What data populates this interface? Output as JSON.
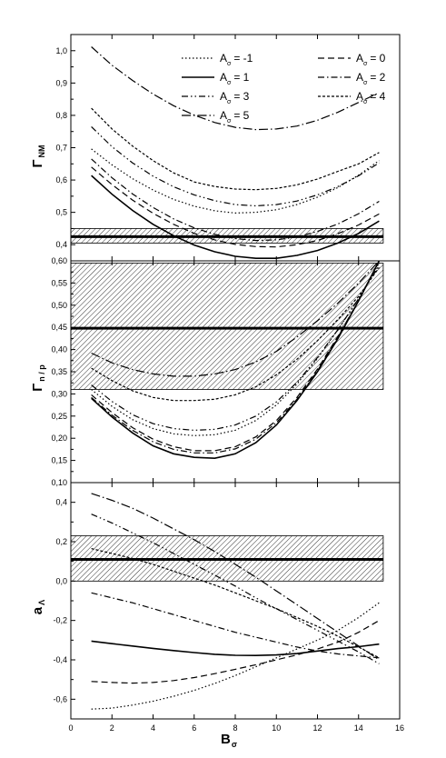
{
  "figure": {
    "xlabel": "B",
    "xlabel_sub": "σ"
  },
  "legend": {
    "placement": "top-right of top panel",
    "entries": [
      {
        "symbol": "A",
        "sub": "σ",
        "value": "= -1",
        "style": "dot"
      },
      {
        "symbol": "A",
        "sub": "σ",
        "value": "= 0",
        "style": "dash"
      },
      {
        "symbol": "A",
        "sub": "σ",
        "value": "= 1",
        "style": "solid"
      },
      {
        "symbol": "A",
        "sub": "σ",
        "value": "= 2",
        "style": "dashdot"
      },
      {
        "symbol": "A",
        "sub": "σ",
        "value": "= 3",
        "style": "dashdotdot"
      },
      {
        "symbol": "A",
        "sub": "σ",
        "value": "= 4",
        "style": "shortdash"
      },
      {
        "symbol": "A",
        "sub": "σ",
        "value": "= 5",
        "style": "longdashdot"
      }
    ]
  },
  "chart_data": [
    {
      "type": "line",
      "ylabel": "Γ",
      "ylabel_sub": "NM",
      "xlim": [
        0,
        16
      ],
      "ylim": [
        0.35,
        1.05
      ],
      "yticks": [
        "0,4",
        "0,5",
        "0,6",
        "0,7",
        "0,8",
        "0,9",
        "1,0"
      ],
      "ytick_values": [
        0.4,
        0.5,
        0.6,
        0.7,
        0.8,
        0.9,
        1.0
      ],
      "xticks": [
        0,
        2,
        4,
        6,
        8,
        10,
        12,
        14,
        16
      ],
      "band": {
        "y0": 0.405,
        "y1": 0.45,
        "line": 0.425,
        "x0": 0,
        "x1": 15.2
      },
      "x": [
        1,
        2,
        3,
        4,
        5,
        6,
        7,
        8,
        9,
        10,
        11,
        12,
        13,
        14,
        15
      ],
      "series": [
        {
          "style": "dot",
          "values": [
            0.696,
            0.647,
            0.604,
            0.569,
            0.54,
            0.519,
            0.505,
            0.498,
            0.5,
            0.508,
            0.524,
            0.547,
            0.577,
            0.615,
            0.66
          ]
        },
        {
          "style": "dash",
          "values": [
            0.64,
            0.586,
            0.538,
            0.497,
            0.463,
            0.435,
            0.415,
            0.401,
            0.394,
            0.393,
            0.4,
            0.413,
            0.434,
            0.461,
            0.495
          ]
        },
        {
          "style": "solid",
          "values": [
            0.614,
            0.556,
            0.506,
            0.463,
            0.428,
            0.399,
            0.378,
            0.364,
            0.358,
            0.358,
            0.367,
            0.382,
            0.405,
            0.435,
            0.473
          ]
        },
        {
          "style": "dashdot",
          "values": [
            0.665,
            0.607,
            0.557,
            0.515,
            0.48,
            0.452,
            0.432,
            0.419,
            0.413,
            0.415,
            0.424,
            0.441,
            0.464,
            0.496,
            0.534
          ]
        },
        {
          "style": "dashdotdot",
          "values": [
            0.765,
            0.703,
            0.653,
            0.612,
            0.579,
            0.554,
            0.536,
            0.524,
            0.52,
            0.524,
            0.535,
            0.554,
            0.58,
            0.613,
            0.653
          ]
        },
        {
          "style": "shortdash",
          "values": [
            0.822,
            0.758,
            0.705,
            0.66,
            0.622,
            0.594,
            0.58,
            0.572,
            0.57,
            0.574,
            0.585,
            0.603,
            0.627,
            0.65,
            0.685
          ]
        },
        {
          "style": "longdashdot",
          "values": [
            1.012,
            0.955,
            0.908,
            0.866,
            0.83,
            0.801,
            0.778,
            0.763,
            0.756,
            0.758,
            0.767,
            0.785,
            0.81,
            0.84,
            0.87
          ]
        }
      ]
    },
    {
      "type": "line",
      "ylabel": "Γ",
      "ylabel_sub": "n / p",
      "xlim": [
        0,
        16
      ],
      "ylim": [
        0.1,
        0.6
      ],
      "yticks": [
        "0,10",
        "0,15",
        "0,20",
        "0,25",
        "0,30",
        "0,35",
        "0,40",
        "0,45",
        "0,50",
        "0,55",
        "0,60"
      ],
      "ytick_values": [
        0.1,
        0.15,
        0.2,
        0.25,
        0.3,
        0.35,
        0.4,
        0.45,
        0.5,
        0.55,
        0.6
      ],
      "xticks": [
        0,
        2,
        4,
        6,
        8,
        10,
        12,
        14,
        16
      ],
      "band": {
        "y0": 0.31,
        "y1": 0.595,
        "line": 0.448,
        "x0": 0,
        "x1": 15.2
      },
      "x": [
        1,
        2,
        3,
        4,
        5,
        6,
        7,
        8,
        9,
        10,
        11,
        12,
        13,
        14,
        15
      ],
      "series": [
        {
          "style": "dot",
          "values": [
            0.31,
            0.272,
            0.242,
            0.222,
            0.21,
            0.206,
            0.208,
            0.218,
            0.24,
            0.275,
            0.322,
            0.38,
            0.445,
            0.515,
            0.595
          ]
        },
        {
          "style": "dash",
          "values": [
            0.298,
            0.258,
            0.224,
            0.198,
            0.181,
            0.172,
            0.172,
            0.181,
            0.203,
            0.24,
            0.292,
            0.356,
            0.43,
            0.51,
            0.6
          ]
        },
        {
          "style": "solid",
          "values": [
            0.29,
            0.248,
            0.212,
            0.183,
            0.165,
            0.157,
            0.155,
            0.165,
            0.19,
            0.23,
            0.285,
            0.35,
            0.425,
            0.51,
            0.6
          ]
        },
        {
          "style": "dashdot",
          "values": [
            0.292,
            0.252,
            0.218,
            0.192,
            0.175,
            0.167,
            0.167,
            0.176,
            0.198,
            0.235,
            0.288,
            0.352,
            0.428,
            0.51,
            0.6
          ]
        },
        {
          "style": "dashdotdot",
          "values": [
            0.32,
            0.283,
            0.253,
            0.233,
            0.222,
            0.218,
            0.22,
            0.23,
            0.25,
            0.282,
            0.326,
            0.382,
            0.445,
            0.515,
            0.59
          ]
        },
        {
          "style": "shortdash",
          "values": [
            0.358,
            0.33,
            0.307,
            0.292,
            0.285,
            0.285,
            0.288,
            0.298,
            0.316,
            0.343,
            0.378,
            0.42,
            0.468,
            0.52,
            0.585
          ]
        },
        {
          "style": "longdashdot",
          "values": [
            0.392,
            0.37,
            0.355,
            0.345,
            0.34,
            0.34,
            0.345,
            0.355,
            0.372,
            0.396,
            0.428,
            0.465,
            0.505,
            0.55,
            0.6
          ]
        }
      ]
    },
    {
      "type": "line",
      "ylabel": "a",
      "ylabel_sub": "Λ",
      "xlim": [
        0,
        16
      ],
      "ylim": [
        -0.7,
        0.5
      ],
      "yticks": [
        "-0,6",
        "-0,4",
        "-0,2",
        "0,0",
        "0,2",
        "0,4"
      ],
      "ytick_values": [
        -0.6,
        -0.4,
        -0.2,
        0.0,
        0.2,
        0.4
      ],
      "xticks": [
        0,
        2,
        4,
        6,
        8,
        10,
        12,
        14,
        16
      ],
      "xtick_labels": [
        "0",
        "2",
        "4",
        "6",
        "8",
        "10",
        "12",
        "14",
        "16"
      ],
      "band": {
        "y0": 0.0,
        "y1": 0.23,
        "line": 0.11,
        "x0": 0,
        "x1": 15.2
      },
      "x": [
        1,
        2,
        3,
        4,
        5,
        6,
        7,
        8,
        9,
        10,
        11,
        12,
        13,
        14,
        15
      ],
      "series": [
        {
          "style": "dot",
          "values": [
            -0.65,
            -0.645,
            -0.63,
            -0.61,
            -0.585,
            -0.555,
            -0.52,
            -0.48,
            -0.435,
            -0.39,
            -0.345,
            -0.3,
            -0.25,
            -0.185,
            -0.11
          ]
        },
        {
          "style": "dash",
          "values": [
            -0.51,
            -0.515,
            -0.518,
            -0.515,
            -0.505,
            -0.49,
            -0.47,
            -0.448,
            -0.425,
            -0.4,
            -0.375,
            -0.345,
            -0.31,
            -0.26,
            -0.2
          ]
        },
        {
          "style": "solid",
          "values": [
            -0.305,
            -0.318,
            -0.33,
            -0.342,
            -0.353,
            -0.363,
            -0.372,
            -0.377,
            -0.378,
            -0.375,
            -0.368,
            -0.355,
            -0.343,
            -0.333,
            -0.32
          ]
        },
        {
          "style": "dashdot",
          "values": [
            -0.06,
            -0.085,
            -0.11,
            -0.14,
            -0.17,
            -0.2,
            -0.23,
            -0.26,
            -0.285,
            -0.31,
            -0.335,
            -0.355,
            -0.37,
            -0.38,
            -0.39
          ]
        },
        {
          "style": "dashdotdot",
          "values": [
            0.34,
            0.295,
            0.245,
            0.195,
            0.14,
            0.085,
            0.03,
            -0.025,
            -0.085,
            -0.14,
            -0.195,
            -0.25,
            -0.305,
            -0.36,
            -0.42
          ]
        },
        {
          "style": "shortdash",
          "values": [
            0.165,
            0.14,
            0.115,
            0.085,
            0.05,
            0.015,
            -0.02,
            -0.06,
            -0.1,
            -0.14,
            -0.185,
            -0.23,
            -0.28,
            -0.335,
            -0.39
          ]
        },
        {
          "style": "longdashdot",
          "values": [
            0.445,
            0.41,
            0.37,
            0.32,
            0.265,
            0.21,
            0.15,
            0.085,
            0.02,
            -0.05,
            -0.12,
            -0.19,
            -0.26,
            -0.33,
            -0.4
          ]
        }
      ]
    }
  ]
}
